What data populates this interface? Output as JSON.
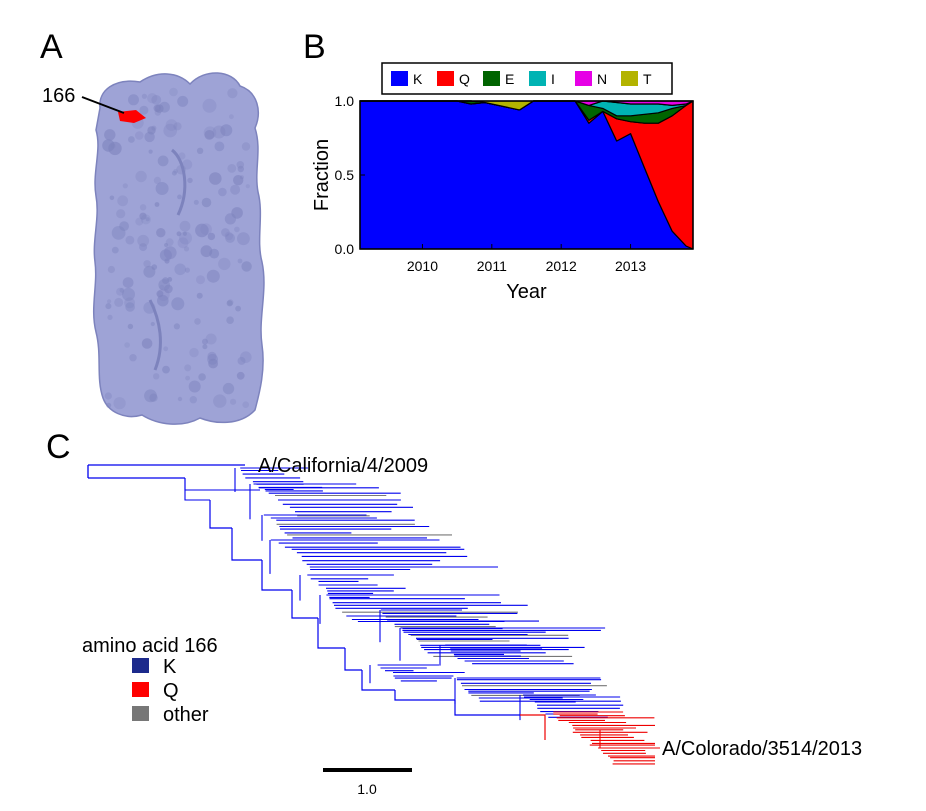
{
  "panels": {
    "a": {
      "letter": "A",
      "site_label": "166",
      "colors": {
        "surface": "#9ea3d6",
        "surface_shadow": "#7d83bd",
        "site": "#ff0000"
      }
    },
    "b": {
      "letter": "B",
      "chart_data": {
        "type": "area",
        "stacked": true,
        "xlabel": "Year",
        "ylabel": "Fraction",
        "xlim": [
          2009.1,
          2013.9
        ],
        "ylim": [
          0,
          1
        ],
        "x_ticks": [
          "2010",
          "2011",
          "2012",
          "2013"
        ],
        "x_tick_values": [
          2010,
          2011,
          2012,
          2013
        ],
        "y_ticks": [
          "0.0",
          "0.5",
          "1.0"
        ],
        "y_tick_values": [
          0,
          0.5,
          1
        ],
        "legend_position": "top",
        "x": [
          2009.1,
          2010.5,
          2010.7,
          2010.9,
          2011.4,
          2011.6,
          2012.0,
          2012.2,
          2012.4,
          2012.6,
          2012.8,
          2013.0,
          2013.2,
          2013.4,
          2013.6,
          2013.8,
          2013.9
        ],
        "series": [
          {
            "name": "K",
            "color": "#0000ff",
            "values": [
              1,
              1,
              0.98,
              0.99,
              0.94,
              1,
              1,
              1,
              0.85,
              0.93,
              0.73,
              0.78,
              0.55,
              0.32,
              0.12,
              0.02,
              0
            ]
          },
          {
            "name": "Q",
            "color": "#ff0000",
            "values": [
              0,
              0,
              0,
              0,
              0,
              0,
              0,
              0,
              0.02,
              0,
              0.15,
              0.08,
              0.3,
              0.53,
              0.78,
              0.95,
              1
            ]
          },
          {
            "name": "E",
            "color": "#006400",
            "values": [
              0,
              0,
              0.02,
              0,
              0,
              0,
              0,
              0,
              0.1,
              0.02,
              0.02,
              0.04,
              0.06,
              0.07,
              0.05,
              0,
              0
            ]
          },
          {
            "name": "I",
            "color": "#00b3b3",
            "values": [
              0,
              0,
              0,
              0,
              0,
              0,
              0,
              0,
              0,
              0.05,
              0.09,
              0.08,
              0.07,
              0.06,
              0.02,
              0.01,
              0
            ]
          },
          {
            "name": "N",
            "color": "#e600e6",
            "values": [
              0,
              0,
              0,
              0,
              0,
              0,
              0,
              0,
              0.03,
              0,
              0.01,
              0.02,
              0.02,
              0.02,
              0.03,
              0.02,
              0
            ]
          },
          {
            "name": "T",
            "color": "#b3b300",
            "values": [
              0,
              0,
              0,
              0.01,
              0.06,
              0,
              0,
              0,
              0,
              0,
              0,
              0,
              0,
              0,
              0,
              0,
              0
            ]
          }
        ]
      }
    },
    "c": {
      "letter": "C",
      "root_label": "A/California/4/2009",
      "tip_label": "A/Colorado/3514/2013",
      "legend": {
        "title": "amino acid 166",
        "items": [
          {
            "label": "K",
            "color": "#1c2a8c",
            "text_color": "#1c2a8c"
          },
          {
            "label": "Q",
            "color": "#ff0000",
            "text_color": "#ff0000"
          },
          {
            "label": "other",
            "color": "#777777",
            "text_color": "#777777"
          }
        ]
      },
      "scale_bar_label": "1.0",
      "branch_colors": {
        "K": "#0000ee",
        "Q": "#ee0000",
        "other": "#777777"
      }
    }
  }
}
